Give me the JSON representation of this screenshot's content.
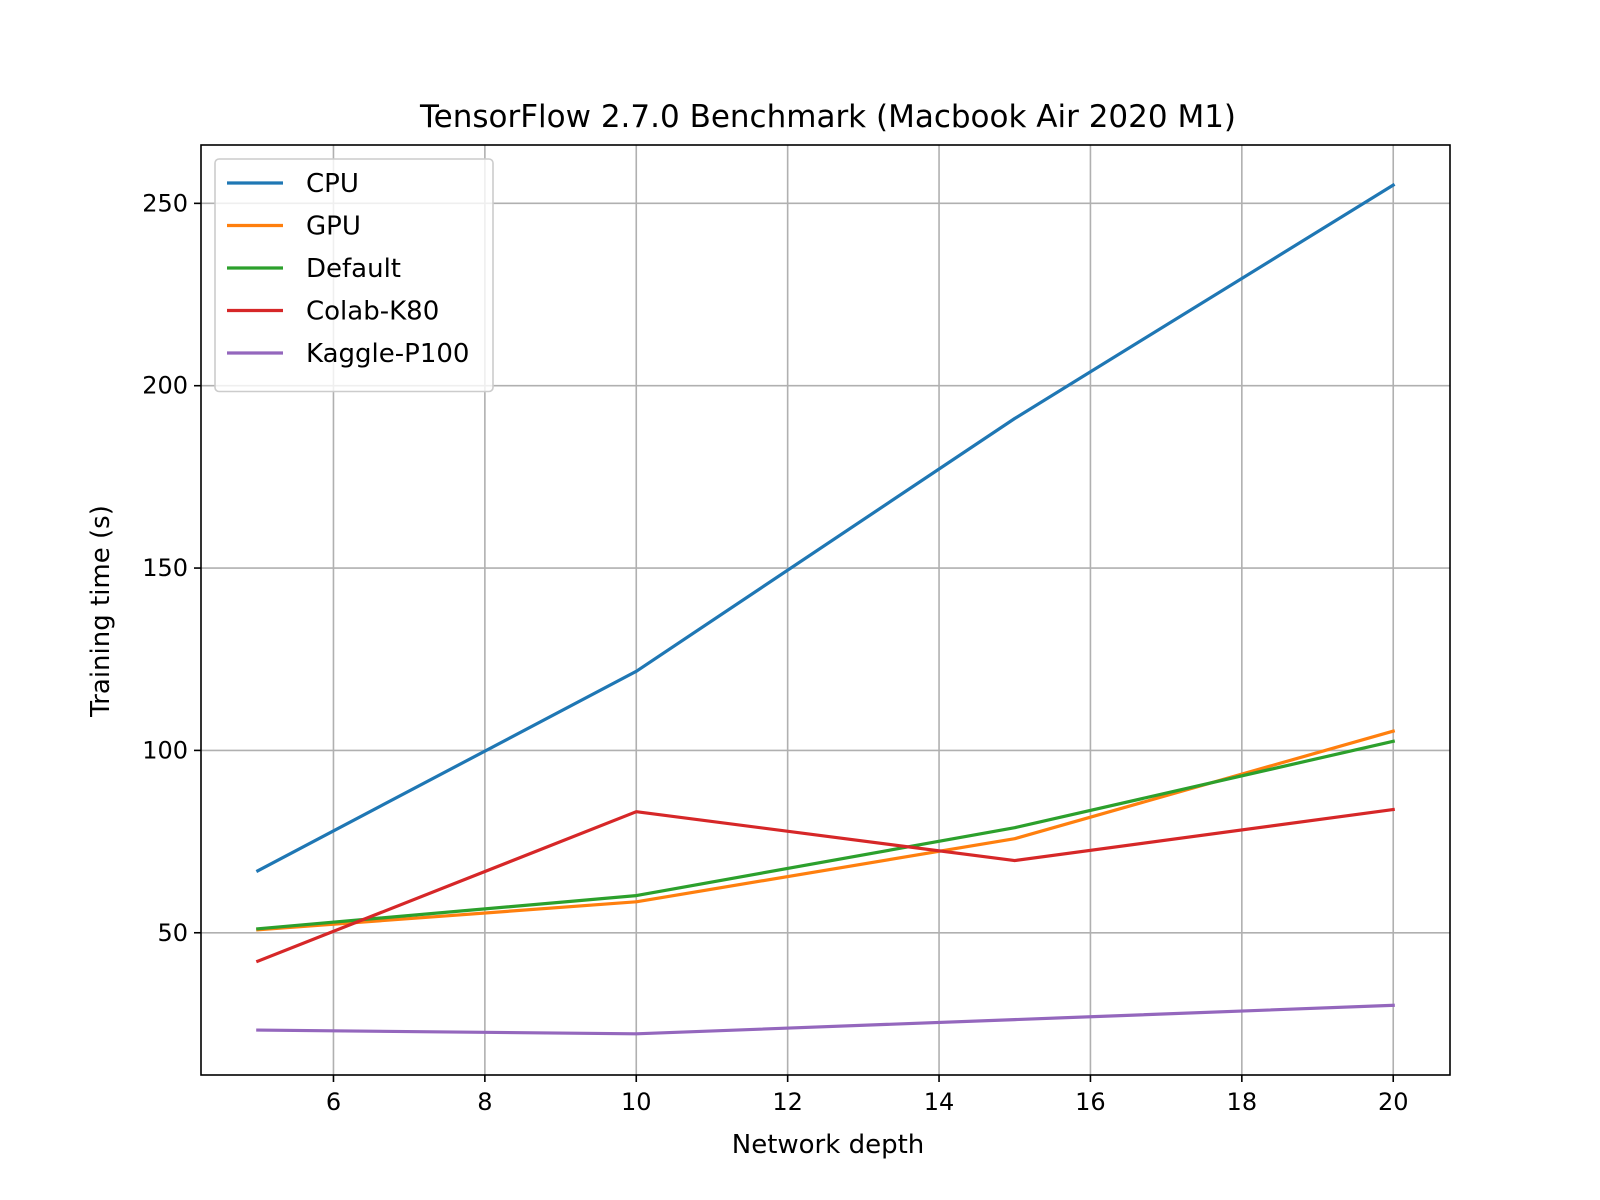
{
  "chart_data": {
    "type": "line",
    "title": "TensorFlow 2.7.0 Benchmark (Macbook Air 2020 M1)",
    "xlabel": "Network depth",
    "ylabel": "Training time (s)",
    "x": [
      5,
      10,
      15,
      20
    ],
    "xlim": [
      4.25,
      20.75
    ],
    "ylim": [
      11,
      266
    ],
    "xticks": [
      6,
      8,
      10,
      12,
      14,
      16,
      18,
      20
    ],
    "yticks": [
      50,
      100,
      150,
      200,
      250
    ],
    "grid": true,
    "legend_position": "upper left",
    "series": [
      {
        "name": "CPU",
        "color": "#1f77b4",
        "values": [
          67,
          121.7,
          191,
          255
        ]
      },
      {
        "name": "GPU",
        "color": "#ff7f0e",
        "values": [
          50.8,
          58.5,
          75.8,
          105.3
        ]
      },
      {
        "name": "Default",
        "color": "#2ca02c",
        "values": [
          51.1,
          60.2,
          78.8,
          102.5
        ]
      },
      {
        "name": "Colab-K80",
        "color": "#d62728",
        "values": [
          42.2,
          83.2,
          69.8,
          83.8
        ]
      },
      {
        "name": "Kaggle-P100",
        "color": "#9467bd",
        "values": [
          23.3,
          22.3,
          26.2,
          30.1
        ]
      }
    ]
  }
}
